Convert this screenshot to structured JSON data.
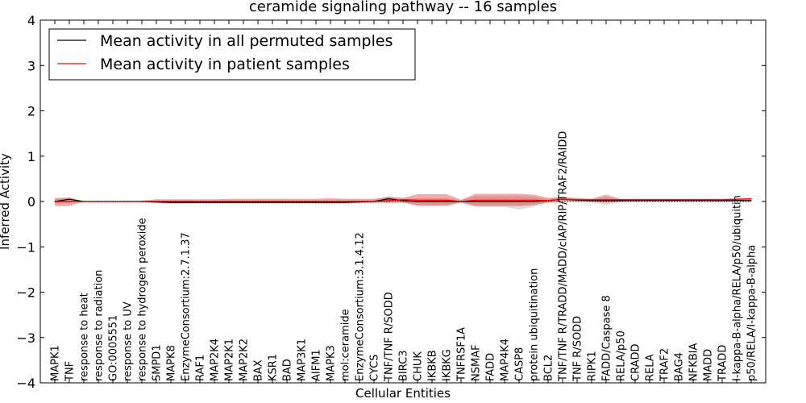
{
  "chart_data": {
    "type": "line",
    "title": "ceramide signaling pathway -- 16 samples",
    "xlabel": "Cellular Entities",
    "ylabel": "Inferred Activity",
    "ylim": [
      -4,
      4
    ],
    "yticks": [
      "4",
      "3",
      "2",
      "1",
      "0",
      "−1",
      "−2",
      "−3",
      "−4"
    ],
    "ytick_values": [
      4,
      3,
      2,
      1,
      0,
      -1,
      -2,
      -3,
      -4
    ],
    "categories": [
      "MAPK1",
      "TNF",
      "response to heat",
      "response to radiation",
      "GO:0005551",
      "response to UV",
      "response to hydrogen peroxide",
      "SMPD1",
      "MAPK8",
      "EnzymeConsortium:2.7.1.37",
      "RAF1",
      "MAP2K4",
      "MAP2K1",
      "MAP2K2",
      "BAX",
      "KSR1",
      "BAD",
      "MAP3K1",
      "AIFM1",
      "MAPK3",
      "mol:ceramide",
      "EnzymeConsortium:3.1.4.12",
      "CYCS",
      "TNF/TNF R/SODD",
      "BIRC3",
      "CHUK",
      "IKBKB",
      "IKBKG",
      "TNFRSF1A",
      "NSMAF",
      "FADD",
      "MAP4K4",
      "CASP8",
      "protein ubiquitination",
      "BCL2",
      "TNF/TNF R/TRADD/MADD/cIAP/RIP/TRAF2/RAIDD",
      "TNF R/SODD",
      "RIPK1",
      "FADD/Caspase 8",
      "RELA/p50",
      "CRADD",
      "RELA",
      "TRAF2",
      "BAG4",
      "NFKBIA",
      "MADD",
      "TRADD",
      "I-kappa-B-alpha/RELA/p50/ubiquitin",
      "p50/RELA/I-kappa-B-alpha"
    ],
    "series": [
      {
        "name": "Mean activity in all permuted samples",
        "color": "#000000",
        "values": [
          0.0,
          0.05,
          0.0,
          0.0,
          0.0,
          0.0,
          0.0,
          -0.01,
          -0.02,
          -0.02,
          -0.02,
          -0.02,
          -0.02,
          -0.02,
          -0.02,
          -0.02,
          -0.02,
          -0.02,
          -0.02,
          -0.02,
          -0.02,
          -0.01,
          0.0,
          0.06,
          0.02,
          0.0,
          0.0,
          0.0,
          0.0,
          0.0,
          0.0,
          0.0,
          0.0,
          0.0,
          0.02,
          0.05,
          0.03,
          0.02,
          0.02,
          0.02,
          0.02,
          0.02,
          0.02,
          0.02,
          0.02,
          0.02,
          0.02,
          0.02,
          0.02
        ],
        "band_low": [
          -0.05,
          -0.02,
          0.0,
          0.0,
          0.0,
          0.0,
          -0.01,
          -0.04,
          -0.05,
          -0.05,
          -0.05,
          -0.05,
          -0.05,
          -0.05,
          -0.05,
          -0.05,
          -0.05,
          -0.05,
          -0.05,
          -0.06,
          -0.05,
          -0.04,
          -0.03,
          0.0,
          -0.03,
          -0.07,
          -0.07,
          -0.07,
          -0.02,
          -0.12,
          -0.12,
          -0.12,
          -0.18,
          -0.12,
          -0.02,
          0.0,
          0.0,
          -0.01,
          -0.08,
          -0.01,
          0.0,
          0.0,
          0.0,
          0.0,
          0.0,
          0.0,
          0.0,
          0.0,
          0.0
        ],
        "band_high": [
          0.05,
          0.1,
          0.0,
          0.0,
          0.0,
          0.0,
          0.01,
          0.02,
          0.02,
          0.02,
          0.02,
          0.02,
          0.02,
          0.02,
          0.02,
          0.02,
          0.02,
          0.02,
          0.02,
          0.02,
          0.02,
          0.02,
          0.03,
          0.12,
          0.06,
          0.07,
          0.07,
          0.07,
          0.02,
          0.12,
          0.12,
          0.12,
          0.12,
          0.1,
          0.05,
          0.1,
          0.06,
          0.05,
          0.1,
          0.05,
          0.04,
          0.04,
          0.04,
          0.04,
          0.04,
          0.04,
          0.04,
          0.05,
          0.05
        ]
      },
      {
        "name": "Mean activity in patient samples",
        "color": "#ff0000",
        "values": [
          0.0,
          0.0,
          0.0,
          0.0,
          0.0,
          0.0,
          0.0,
          0.0,
          0.0,
          0.0,
          0.0,
          0.0,
          0.0,
          0.0,
          0.0,
          0.0,
          0.0,
          0.0,
          0.0,
          0.0,
          0.0,
          0.0,
          0.0,
          0.02,
          0.04,
          0.03,
          0.03,
          0.03,
          0.0,
          0.03,
          0.03,
          0.03,
          0.03,
          0.03,
          0.02,
          0.05,
          0.04,
          0.04,
          0.04,
          0.04,
          0.04,
          0.04,
          0.04,
          0.04,
          0.04,
          0.04,
          0.04,
          0.05,
          0.06
        ],
        "band_low": [
          -0.1,
          -0.1,
          0.0,
          0.0,
          0.0,
          0.0,
          -0.01,
          -0.03,
          -0.04,
          -0.04,
          -0.03,
          -0.03,
          -0.03,
          -0.03,
          -0.03,
          -0.03,
          -0.03,
          -0.03,
          -0.03,
          -0.03,
          -0.03,
          -0.03,
          -0.02,
          -0.03,
          -0.02,
          -0.1,
          -0.1,
          -0.1,
          -0.02,
          -0.1,
          -0.1,
          -0.1,
          -0.1,
          -0.08,
          -0.02,
          0.0,
          0.0,
          0.0,
          -0.02,
          0.0,
          0.02,
          0.02,
          0.02,
          0.02,
          0.02,
          0.02,
          0.02,
          0.02,
          0.03
        ],
        "band_high": [
          0.08,
          0.08,
          0.0,
          0.0,
          0.0,
          0.0,
          0.02,
          0.05,
          0.05,
          0.05,
          0.05,
          0.05,
          0.06,
          0.06,
          0.06,
          0.06,
          0.06,
          0.06,
          0.06,
          0.07,
          0.06,
          0.06,
          0.06,
          0.1,
          0.08,
          0.16,
          0.16,
          0.16,
          0.04,
          0.17,
          0.17,
          0.17,
          0.17,
          0.15,
          0.08,
          0.1,
          0.08,
          0.06,
          0.15,
          0.06,
          0.06,
          0.06,
          0.06,
          0.06,
          0.06,
          0.06,
          0.06,
          0.07,
          0.08
        ]
      }
    ],
    "reference_line": 0,
    "legend_position": "top-left"
  }
}
